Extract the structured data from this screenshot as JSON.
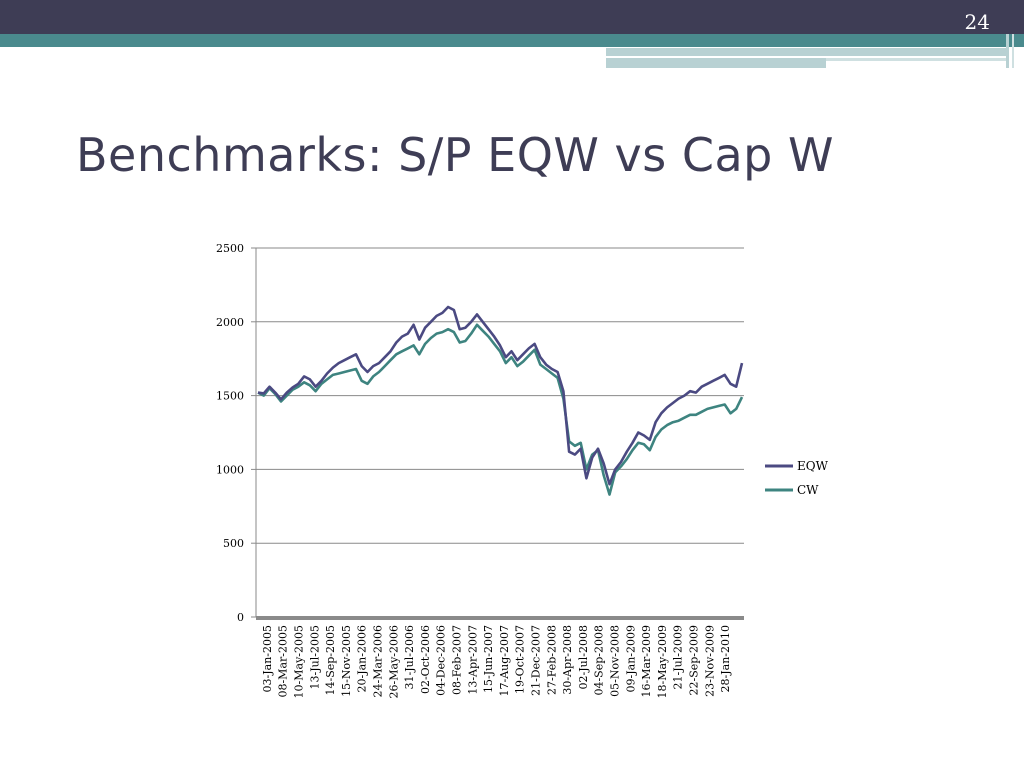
{
  "slide": {
    "page_number": "24",
    "title": "Benchmarks: S/P EQW vs Cap W"
  },
  "colors": {
    "header_dark": "#3e3d55",
    "header_teal": "#4a8a8d",
    "eqw": "#4b4a82",
    "cw": "#3e8480"
  },
  "chart_data": {
    "type": "line",
    "title": "",
    "xlabel": "",
    "ylabel": "",
    "ylim": [
      0,
      2500
    ],
    "y_ticks": [
      0,
      500,
      1000,
      1500,
      2000,
      2500
    ],
    "grid": true,
    "legend_position": "right",
    "x_tick_labels": [
      "03-Jan-2005",
      "08-Mar-2005",
      "10-May-2005",
      "13-Jul-2005",
      "14-Sep-2005",
      "15-Nov-2005",
      "20-Jan-2006",
      "24-Mar-2006",
      "26-May-2006",
      "31-Jul-2006",
      "02-Oct-2006",
      "04-Dec-2006",
      "08-Feb-2007",
      "13-Apr-2007",
      "15-Jun-2007",
      "17-Aug-2007",
      "19-Oct-2007",
      "21-Dec-2007",
      "27-Feb-2008",
      "30-Apr-2008",
      "02-Jul-2008",
      "04-Sep-2008",
      "05-Nov-2008",
      "09-Jan-2009",
      "16-Mar-2009",
      "18-May-2009",
      "21-Jul-2009",
      "22-Sep-2009",
      "23-Nov-2009",
      "28-Jan-2010"
    ],
    "series": [
      {
        "name": "EQW",
        "values": [
          1520,
          1515,
          1560,
          1520,
          1475,
          1520,
          1555,
          1580,
          1630,
          1610,
          1560,
          1600,
          1650,
          1690,
          1720,
          1740,
          1760,
          1780,
          1700,
          1660,
          1700,
          1720,
          1760,
          1800,
          1860,
          1900,
          1920,
          1980,
          1880,
          1960,
          2000,
          2040,
          2060,
          2100,
          2080,
          1950,
          1960,
          2000,
          2050,
          2000,
          1950,
          1900,
          1840,
          1760,
          1800,
          1740,
          1780,
          1820,
          1850,
          1760,
          1710,
          1680,
          1660,
          1530,
          1120,
          1100,
          1140,
          940,
          1080,
          1140,
          1040,
          900,
          1000,
          1050,
          1120,
          1180,
          1250,
          1230,
          1200,
          1320,
          1380,
          1420,
          1450,
          1480,
          1500,
          1530,
          1520,
          1560,
          1580,
          1600,
          1620,
          1640,
          1580,
          1560,
          1720
        ]
      },
      {
        "name": "CW",
        "values": [
          1520,
          1500,
          1550,
          1510,
          1460,
          1500,
          1540,
          1560,
          1590,
          1570,
          1530,
          1580,
          1610,
          1640,
          1650,
          1660,
          1670,
          1680,
          1600,
          1580,
          1630,
          1660,
          1700,
          1740,
          1780,
          1800,
          1820,
          1840,
          1780,
          1850,
          1890,
          1920,
          1930,
          1950,
          1930,
          1860,
          1870,
          1920,
          1980,
          1940,
          1900,
          1850,
          1800,
          1720,
          1760,
          1700,
          1730,
          1770,
          1810,
          1710,
          1680,
          1650,
          1620,
          1480,
          1190,
          1160,
          1180,
          1000,
          1100,
          1130,
          960,
          830,
          980,
          1020,
          1070,
          1130,
          1180,
          1170,
          1130,
          1220,
          1270,
          1300,
          1320,
          1330,
          1350,
          1370,
          1370,
          1390,
          1410,
          1420,
          1430,
          1440,
          1380,
          1410,
          1490
        ]
      }
    ]
  }
}
